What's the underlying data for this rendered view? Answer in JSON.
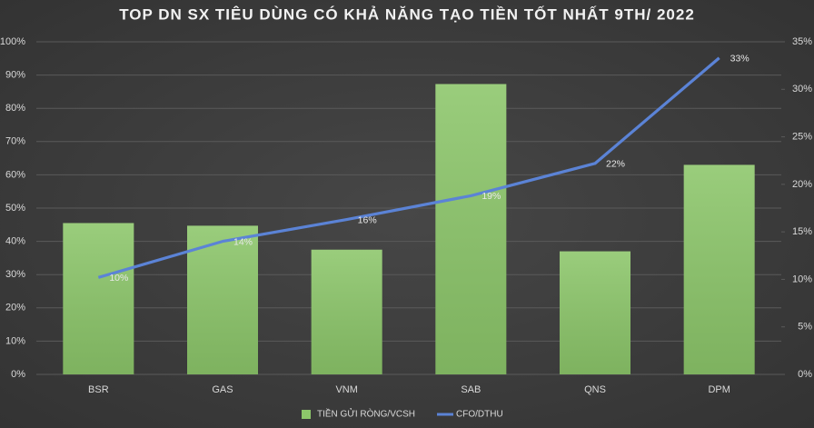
{
  "chart_data": {
    "type": "combo",
    "title": "TOP DN SX TIÊU DÙNG CÓ KHẢ NĂNG TẠO TIỀN TỐT NHẤT 9TH/ 2022",
    "categories": [
      "BSR",
      "GAS",
      "VNM",
      "SAB",
      "QNS",
      "DPM"
    ],
    "series": [
      {
        "name": "TIỀN GỬI RÒNG/VCSH",
        "type": "bar",
        "color": "#8cc66a",
        "values": [
          45.5,
          44.7,
          37.5,
          87.3,
          37,
          63
        ]
      },
      {
        "name": "CFO/DTHU",
        "type": "line",
        "axis": "y2",
        "color": "#5b83d6",
        "values": [
          10.2,
          14.0,
          16.3,
          18.8,
          22.2,
          33.3
        ],
        "value_labels": [
          "10%",
          "14%",
          "16%",
          "19%",
          "22%",
          "33%"
        ]
      }
    ],
    "ylim": [
      0,
      100
    ],
    "yticks": [
      {
        "value": 0,
        "label": "0%"
      },
      {
        "value": 10,
        "label": "10%"
      },
      {
        "value": 20,
        "label": "20%"
      },
      {
        "value": 30,
        "label": "30%"
      },
      {
        "value": 40,
        "label": "40%"
      },
      {
        "value": 50,
        "label": "50%"
      },
      {
        "value": 60,
        "label": "60%"
      },
      {
        "value": 70,
        "label": "70%"
      },
      {
        "value": 80,
        "label": "80%"
      },
      {
        "value": 90,
        "label": "90%"
      },
      {
        "value": 100,
        "label": "100%"
      }
    ],
    "y2lim": [
      0,
      35
    ],
    "y2ticks": [
      {
        "value": 0,
        "label": "0%"
      },
      {
        "value": 5,
        "label": "5%"
      },
      {
        "value": 10,
        "label": "10%"
      },
      {
        "value": 15,
        "label": "15%"
      },
      {
        "value": 20,
        "label": "20%"
      },
      {
        "value": 25,
        "label": "25%"
      },
      {
        "value": 30,
        "label": "30%"
      },
      {
        "value": 35,
        "label": "35%"
      }
    ],
    "grid": true,
    "legend": "bottom"
  }
}
